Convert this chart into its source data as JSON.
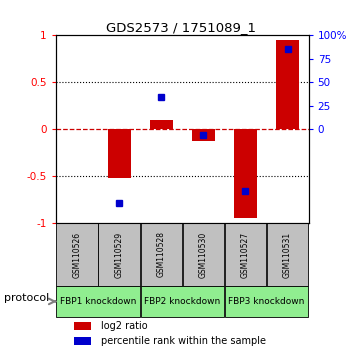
{
  "title": "GDS2573 / 1751089_1",
  "samples": [
    "GSM110526",
    "GSM110529",
    "GSM110528",
    "GSM110530",
    "GSM110527",
    "GSM110531"
  ],
  "log2_ratio": [
    0.0,
    -0.52,
    0.1,
    -0.12,
    -0.95,
    0.95
  ],
  "percentile_rank": [
    null,
    0.11,
    0.67,
    0.47,
    0.17,
    0.93
  ],
  "ylim": [
    -1.0,
    1.0
  ],
  "left_yticks": [
    -1.0,
    -0.5,
    0.0,
    0.5,
    1.0
  ],
  "left_yticklabels": [
    "-1",
    "-0.5",
    "0",
    "0.5",
    "1"
  ],
  "right_yticks": [
    0.0,
    0.25,
    0.5,
    0.75,
    1.0
  ],
  "right_yticklabels": [
    "0",
    "25",
    "50",
    "75",
    "100%"
  ],
  "bar_color": "#cc0000",
  "percentile_color": "#0000cc",
  "bar_width": 0.55,
  "background_color": "#ffffff",
  "hline_color": "#cc0000",
  "sample_box_color": "#c0c0c0",
  "proto_color": "#90ee90",
  "legend_red_label": "log2 ratio",
  "legend_blue_label": "percentile rank within the sample",
  "proto_groups": [
    {
      "indices": [
        0,
        1
      ],
      "label": "FBP1 knockdown"
    },
    {
      "indices": [
        2,
        3
      ],
      "label": "FBP2 knockdown"
    },
    {
      "indices": [
        4,
        5
      ],
      "label": "FBP3 knockdown"
    }
  ]
}
